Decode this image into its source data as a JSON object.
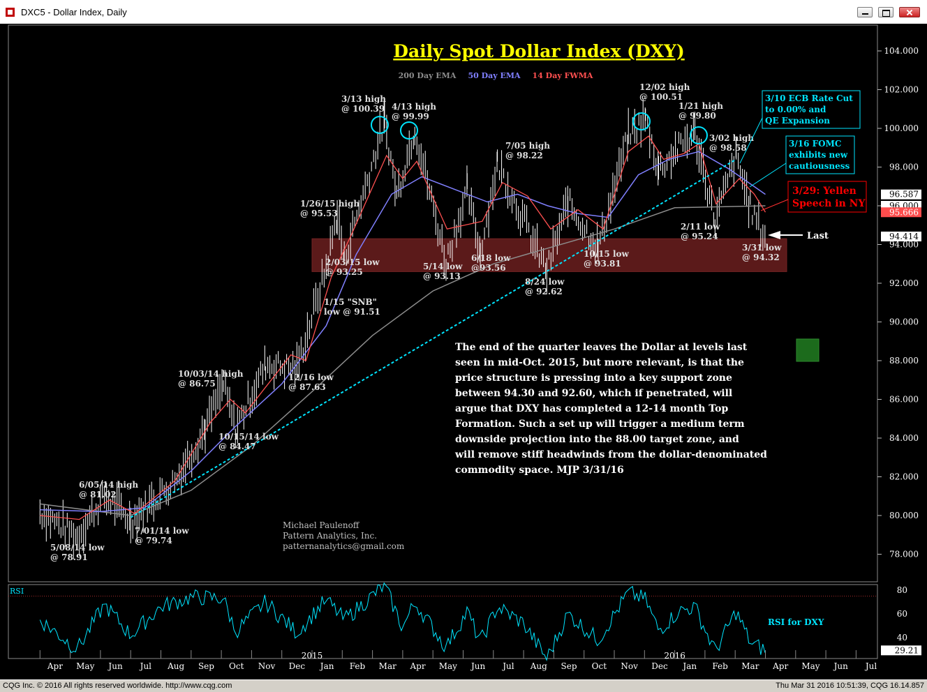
{
  "window": {
    "title": "DXC5 - Dollar Index, Daily"
  },
  "status": {
    "left": "CQG Inc. © 2016 All rights reserved worldwide. http://www.cqg.com",
    "right": "Thu Mar 31 2016 10:51:39, CQG 16.14.857"
  },
  "colors": {
    "price": "#ffffff",
    "ema200": "#8c8c8c",
    "ema50": "#8080ff",
    "fwma14": "#ff5050",
    "trend": "#00e5ff",
    "rsi": "#00e5ff",
    "zone": "#6b1f1f",
    "title": "#ffff00"
  },
  "chart_data": [
    {
      "type": "line",
      "title": "Daily Spot Dollar Index (DXY)",
      "legend": [
        "200 Day EMA",
        "50 Day EMA",
        "14 Day FWMA"
      ],
      "xlabel": "",
      "ylabel": "",
      "ylim": [
        76,
        105
      ],
      "y_ticks": [
        "104.000",
        "102.000",
        "100.000",
        "98.000",
        "96.000",
        "94.000",
        "92.000",
        "90.000",
        "88.000",
        "86.000",
        "84.000",
        "82.000",
        "80.000",
        "78.000"
      ],
      "x_ticks": [
        "Apr",
        "May",
        "Jun",
        "Jul",
        "Aug",
        "Sep",
        "Oct",
        "Nov",
        "Dec",
        "Jan",
        "Feb",
        "Mar",
        "Apr",
        "May",
        "Jun",
        "Jul",
        "Aug",
        "Sep",
        "Oct",
        "Nov",
        "Dec",
        "Jan",
        "Feb",
        "Mar",
        "Apr",
        "May",
        "Jun",
        "Jul"
      ],
      "year_labels": [
        "2015",
        "2016"
      ],
      "right_labels": [
        {
          "text": "96.587",
          "value": 96.587,
          "series": "50 Day EMA"
        },
        {
          "text": "96.000",
          "value": 96.0,
          "series": "200 Day EMA"
        },
        {
          "text": "95.666",
          "value": 95.666,
          "series": "14 Day FWMA"
        },
        {
          "text": "94.414",
          "value": 94.414,
          "series": "Last"
        }
      ],
      "series": [
        {
          "name": "Price",
          "x": [
            "2014-04-01",
            "2014-05-08",
            "2014-06-05",
            "2014-07-01",
            "2014-08-15",
            "2014-09-15",
            "2014-10-03",
            "2014-10-15",
            "2014-11-15",
            "2014-12-16",
            "2015-01-15",
            "2015-01-26",
            "2015-02-03",
            "2015-03-13",
            "2015-03-25",
            "2015-04-13",
            "2015-05-14",
            "2015-06-05",
            "2015-06-18",
            "2015-07-05",
            "2015-08-24",
            "2015-09-15",
            "2015-10-15",
            "2015-11-15",
            "2015-12-02",
            "2015-12-15",
            "2016-01-05",
            "2016-01-21",
            "2016-02-11",
            "2016-03-02",
            "2016-03-16",
            "2016-03-31"
          ],
          "values": [
            80.2,
            78.91,
            81.02,
            79.74,
            81.8,
            84.5,
            86.75,
            84.47,
            87.8,
            87.63,
            92.8,
            95.53,
            93.25,
            100.39,
            96.6,
            99.99,
            93.13,
            96.8,
            93.56,
            98.22,
            92.62,
            96.2,
            93.81,
            99.6,
            100.51,
            97.9,
            99.0,
            99.8,
            95.24,
            98.58,
            95.9,
            94.32
          ]
        },
        {
          "name": "200 Day EMA",
          "x": [
            "2014-04-01",
            "2014-07-01",
            "2014-09-01",
            "2014-11-01",
            "2015-01-01",
            "2015-03-01",
            "2015-05-01",
            "2015-07-01",
            "2015-09-01",
            "2015-11-01",
            "2016-01-01",
            "2016-03-31"
          ],
          "values": [
            80.6,
            80.0,
            81.3,
            83.6,
            86.4,
            89.3,
            91.6,
            93.0,
            93.9,
            94.8,
            95.9,
            96.0
          ]
        },
        {
          "name": "50 Day EMA",
          "x": [
            "2014-04-01",
            "2014-06-01",
            "2014-07-15",
            "2014-09-01",
            "2014-10-15",
            "2014-12-01",
            "2015-01-15",
            "2015-02-15",
            "2015-03-20",
            "2015-04-20",
            "2015-05-25",
            "2015-06-25",
            "2015-07-25",
            "2015-08-25",
            "2015-09-25",
            "2015-10-25",
            "2015-11-25",
            "2015-12-25",
            "2016-01-25",
            "2016-02-25",
            "2016-03-31"
          ],
          "values": [
            80.3,
            80.2,
            80.4,
            82.3,
            84.6,
            86.8,
            89.8,
            93.5,
            96.6,
            97.5,
            96.8,
            96.2,
            96.6,
            96.0,
            95.6,
            95.4,
            97.6,
            98.4,
            98.8,
            97.9,
            96.59
          ]
        },
        {
          "name": "14 Day FWMA",
          "x": [
            "2014-04-01",
            "2014-05-10",
            "2014-06-10",
            "2014-07-05",
            "2014-08-15",
            "2014-09-20",
            "2014-10-10",
            "2014-10-25",
            "2014-12-10",
            "2014-12-25",
            "2015-01-20",
            "2015-02-10",
            "2015-03-15",
            "2015-04-01",
            "2015-04-15",
            "2015-05-15",
            "2015-06-20",
            "2015-07-10",
            "2015-08-05",
            "2015-08-28",
            "2015-09-25",
            "2015-10-20",
            "2015-11-15",
            "2015-12-05",
            "2015-12-20",
            "2016-01-10",
            "2016-01-25",
            "2016-02-12",
            "2016-03-05",
            "2016-03-20",
            "2016-03-31"
          ],
          "values": [
            80.0,
            79.8,
            80.8,
            80.1,
            81.8,
            84.8,
            86.0,
            85.3,
            88.3,
            88.0,
            92.3,
            94.5,
            98.6,
            97.4,
            98.3,
            94.8,
            95.2,
            97.2,
            96.5,
            94.8,
            95.8,
            94.8,
            98.8,
            99.6,
            98.4,
            98.7,
            99.2,
            96.1,
            97.4,
            96.6,
            95.67
          ]
        },
        {
          "name": "Trend line",
          "x": [
            "2014-07-01",
            "2016-03-02"
          ],
          "values": [
            79.9,
            98.4
          ]
        }
      ],
      "legend_placement": "top",
      "support_zone": [
        92.6,
        94.3
      ],
      "annotations": [
        {
          "text": [
            "3/13 high",
            "@ 100.39"
          ]
        },
        {
          "text": [
            "4/13 high",
            "@ 99.99"
          ]
        },
        {
          "text": [
            "12/02 high",
            "@ 100.51"
          ]
        },
        {
          "text": [
            "1/21 high",
            "@ 99.80"
          ]
        },
        {
          "text": [
            "3/02 high",
            "@ 98.58"
          ]
        },
        {
          "text": [
            "7/05 high",
            "@ 98.22"
          ]
        },
        {
          "text": [
            "1/26/15 high",
            "@ 95.53"
          ]
        },
        {
          "text": [
            "2/03/15 low",
            "@ 93.25"
          ]
        },
        {
          "text": [
            "5/14 low",
            "@ 93.13"
          ]
        },
        {
          "text": [
            "6/18 low",
            "@93.56"
          ]
        },
        {
          "text": [
            "8/24 low",
            "@ 92.62"
          ]
        },
        {
          "text": [
            "10/15 low",
            "@ 93.81"
          ]
        },
        {
          "text": [
            "2/11 low",
            "@ 95.24"
          ]
        },
        {
          "text": [
            "3/31 low",
            "@ 94.32"
          ]
        },
        {
          "text": [
            "1/15 \"SNB\"",
            "low @ 91.51"
          ]
        },
        {
          "text": [
            "12/16 low",
            "@ 87.63"
          ]
        },
        {
          "text": [
            "10/03/14 high",
            "@ 86.75"
          ]
        },
        {
          "text": [
            "10/15/14 low",
            "@ 84.47"
          ]
        },
        {
          "text": [
            "6/05/14 high",
            "@ 81.02"
          ]
        },
        {
          "text": [
            "7/01/14 low",
            "@ 79.74"
          ]
        },
        {
          "text": [
            "5/08/14 low",
            "@ 78.91"
          ]
        }
      ],
      "callouts": [
        {
          "text": [
            "3/10 ECB Rate Cut",
            "to 0.00% and",
            "QE Expansion"
          ],
          "color": "#00e5ff"
        },
        {
          "text": [
            "3/16 FOMC",
            "exhibits new",
            "cautiousness"
          ],
          "color": "#00e5ff"
        },
        {
          "text": [
            "3/29: Yellen",
            "Speech in NY"
          ],
          "color": "#ff0000"
        }
      ],
      "last_label": "Last",
      "credit": [
        "Michael Paulenoff",
        "Pattern Analytics, Inc.",
        "patternanalytics@gmail.com"
      ],
      "commentary": [
        "The end of the quarter leaves the Dollar at levels last",
        "seen in mid-Oct. 2015, but more relevant, is that the",
        "price structure is pressing into a key support zone",
        "between 94.30 and 92.60, which if penetrated, will",
        "argue that DXY has completed a 12-14 month Top",
        "Formation. Such a set up will trigger a medium term",
        "downside projection into the 88.00 target zone, and",
        "will remove stiff headwinds from the dollar-denominated",
        "commodity space.  MJP 3/31/16"
      ]
    },
    {
      "type": "line",
      "title": "RSI",
      "series_label": "RSI for DXY",
      "ylim": [
        20,
        90
      ],
      "y_ticks": [
        "80",
        "60",
        "40"
      ],
      "overbought": 75,
      "last_value": "29.21",
      "series": [
        {
          "name": "RSI",
          "x": [
            "2014-04-01",
            "2014-05-08",
            "2014-06-05",
            "2014-07-01",
            "2014-08-01",
            "2014-09-01",
            "2014-10-03",
            "2014-10-15",
            "2014-11-15",
            "2014-12-16",
            "2015-01-15",
            "2015-02-03",
            "2015-03-13",
            "2015-04-01",
            "2015-04-13",
            "2015-05-14",
            "2015-06-05",
            "2015-06-18",
            "2015-07-05",
            "2015-08-01",
            "2015-08-24",
            "2015-09-15",
            "2015-10-15",
            "2015-11-15",
            "2015-12-02",
            "2015-12-15",
            "2016-01-05",
            "2016-01-21",
            "2016-02-11",
            "2016-03-02",
            "2016-03-16",
            "2016-03-31"
          ],
          "values": [
            55,
            30,
            68,
            42,
            66,
            74,
            73,
            45,
            70,
            44,
            72,
            55,
            84,
            48,
            70,
            32,
            62,
            36,
            66,
            52,
            22,
            60,
            38,
            78,
            72,
            46,
            62,
            66,
            28,
            62,
            36,
            29.21
          ]
        }
      ]
    }
  ]
}
